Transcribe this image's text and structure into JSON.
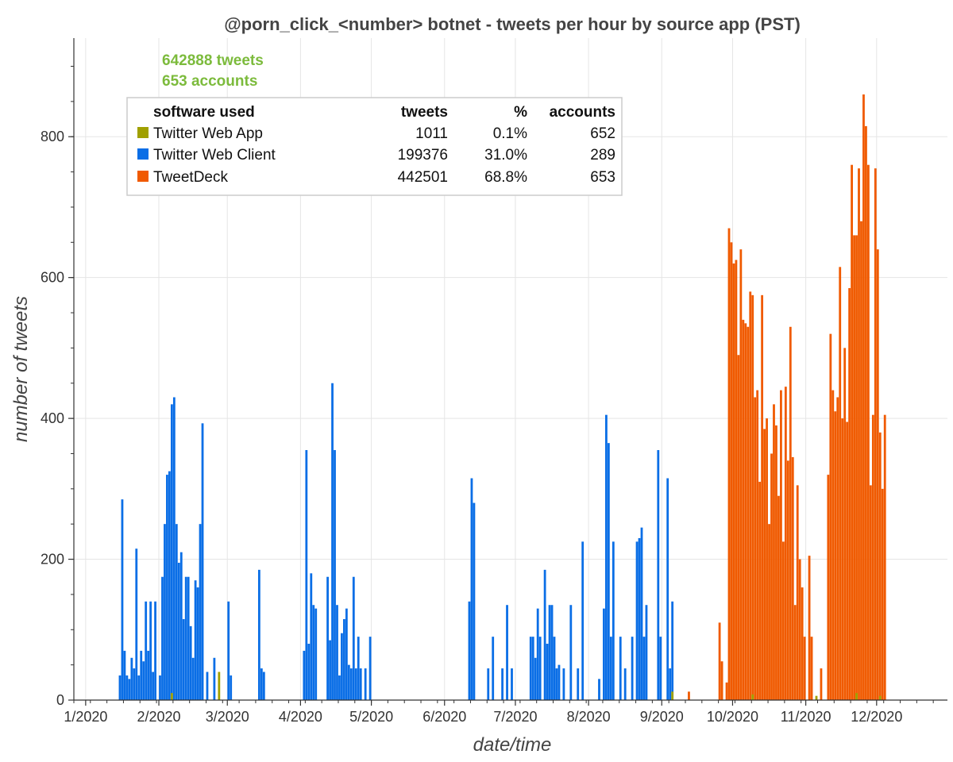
{
  "chart_data": {
    "type": "bar",
    "title": "@porn_click_<number> botnet - tweets per hour by source app (PST)",
    "xlabel": "date/time",
    "ylabel": "number of tweets",
    "x_range": [
      "2019-12-27",
      "2020-12-31"
    ],
    "y_range": [
      0,
      940
    ],
    "y_ticks": [
      0,
      200,
      400,
      600,
      800
    ],
    "x_ticks": [
      {
        "date": "2020-01-01",
        "label": "1/2020"
      },
      {
        "date": "2020-02-01",
        "label": "2/2020"
      },
      {
        "date": "2020-03-01",
        "label": "3/2020"
      },
      {
        "date": "2020-04-01",
        "label": "4/2020"
      },
      {
        "date": "2020-05-01",
        "label": "5/2020"
      },
      {
        "date": "2020-06-01",
        "label": "6/2020"
      },
      {
        "date": "2020-07-01",
        "label": "7/2020"
      },
      {
        "date": "2020-08-01",
        "label": "8/2020"
      },
      {
        "date": "2020-09-01",
        "label": "9/2020"
      },
      {
        "date": "2020-10-01",
        "label": "10/2020"
      },
      {
        "date": "2020-11-01",
        "label": "11/2020"
      },
      {
        "date": "2020-12-01",
        "label": "12/2020"
      }
    ],
    "grid": true,
    "legend_position": "top-left",
    "summary": {
      "tweets": "642888 tweets",
      "accounts": "653 accounts",
      "color": "#7cbb3c"
    },
    "legend_table": {
      "headers": [
        "software used",
        "tweets",
        "%",
        "accounts"
      ],
      "rows": [
        {
          "name": "Twitter Web App",
          "tweets": "1011",
          "percent": "0.1%",
          "accounts": "652"
        },
        {
          "name": "Twitter Web Client",
          "tweets": "199376",
          "percent": "31.0%",
          "accounts": "289"
        },
        {
          "name": "TweetDeck",
          "tweets": "442501",
          "percent": "68.8%",
          "accounts": "653"
        }
      ]
    },
    "series": [
      {
        "name": "Twitter Web Client",
        "color": "#0a6ee6",
        "points": [
          [
            "2020-01-15",
            35
          ],
          [
            "2020-01-16",
            285
          ],
          [
            "2020-01-17",
            70
          ],
          [
            "2020-01-18",
            35
          ],
          [
            "2020-01-19",
            30
          ],
          [
            "2020-01-20",
            60
          ],
          [
            "2020-01-21",
            45
          ],
          [
            "2020-01-22",
            215
          ],
          [
            "2020-01-23",
            35
          ],
          [
            "2020-01-24",
            70
          ],
          [
            "2020-01-25",
            55
          ],
          [
            "2020-01-26",
            140
          ],
          [
            "2020-01-27",
            70
          ],
          [
            "2020-01-28",
            140
          ],
          [
            "2020-01-29",
            40
          ],
          [
            "2020-01-30",
            140
          ],
          [
            "2020-02-01",
            35
          ],
          [
            "2020-02-02",
            175
          ],
          [
            "2020-02-03",
            250
          ],
          [
            "2020-02-04",
            320
          ],
          [
            "2020-02-05",
            325
          ],
          [
            "2020-02-06",
            420
          ],
          [
            "2020-02-07",
            430
          ],
          [
            "2020-02-08",
            250
          ],
          [
            "2020-02-09",
            195
          ],
          [
            "2020-02-10",
            210
          ],
          [
            "2020-02-11",
            115
          ],
          [
            "2020-02-12",
            175
          ],
          [
            "2020-02-13",
            175
          ],
          [
            "2020-02-14",
            105
          ],
          [
            "2020-02-15",
            60
          ],
          [
            "2020-02-16",
            170
          ],
          [
            "2020-02-17",
            160
          ],
          [
            "2020-02-18",
            250
          ],
          [
            "2020-02-19",
            393
          ],
          [
            "2020-02-21",
            40
          ],
          [
            "2020-02-24",
            60
          ],
          [
            "2020-03-01",
            140
          ],
          [
            "2020-03-02",
            35
          ],
          [
            "2020-03-14",
            185
          ],
          [
            "2020-03-15",
            45
          ],
          [
            "2020-03-16",
            40
          ],
          [
            "2020-04-02",
            70
          ],
          [
            "2020-04-03",
            355
          ],
          [
            "2020-04-04",
            80
          ],
          [
            "2020-04-05",
            180
          ],
          [
            "2020-04-06",
            135
          ],
          [
            "2020-04-07",
            130
          ],
          [
            "2020-04-12",
            175
          ],
          [
            "2020-04-13",
            85
          ],
          [
            "2020-04-14",
            450
          ],
          [
            "2020-04-15",
            355
          ],
          [
            "2020-04-16",
            135
          ],
          [
            "2020-04-17",
            35
          ],
          [
            "2020-04-18",
            95
          ],
          [
            "2020-04-19",
            115
          ],
          [
            "2020-04-20",
            130
          ],
          [
            "2020-04-21",
            50
          ],
          [
            "2020-04-22",
            45
          ],
          [
            "2020-04-23",
            175
          ],
          [
            "2020-04-24",
            45
          ],
          [
            "2020-04-25",
            90
          ],
          [
            "2020-04-26",
            45
          ],
          [
            "2020-04-28",
            45
          ],
          [
            "2020-04-30",
            90
          ],
          [
            "2020-06-11",
            140
          ],
          [
            "2020-06-12",
            315
          ],
          [
            "2020-06-13",
            280
          ],
          [
            "2020-06-19",
            45
          ],
          [
            "2020-06-21",
            90
          ],
          [
            "2020-06-25",
            45
          ],
          [
            "2020-06-27",
            135
          ],
          [
            "2020-06-29",
            45
          ],
          [
            "2020-07-07",
            90
          ],
          [
            "2020-07-08",
            90
          ],
          [
            "2020-07-09",
            60
          ],
          [
            "2020-07-10",
            130
          ],
          [
            "2020-07-11",
            90
          ],
          [
            "2020-07-13",
            185
          ],
          [
            "2020-07-14",
            80
          ],
          [
            "2020-07-15",
            135
          ],
          [
            "2020-07-16",
            135
          ],
          [
            "2020-07-17",
            90
          ],
          [
            "2020-07-18",
            45
          ],
          [
            "2020-07-19",
            50
          ],
          [
            "2020-07-21",
            45
          ],
          [
            "2020-07-24",
            135
          ],
          [
            "2020-07-27",
            45
          ],
          [
            "2020-07-29",
            225
          ],
          [
            "2020-08-05",
            30
          ],
          [
            "2020-08-07",
            130
          ],
          [
            "2020-08-08",
            405
          ],
          [
            "2020-08-09",
            365
          ],
          [
            "2020-08-10",
            90
          ],
          [
            "2020-08-11",
            225
          ],
          [
            "2020-08-14",
            90
          ],
          [
            "2020-08-16",
            45
          ],
          [
            "2020-08-19",
            90
          ],
          [
            "2020-08-21",
            225
          ],
          [
            "2020-08-22",
            230
          ],
          [
            "2020-08-23",
            245
          ],
          [
            "2020-08-24",
            90
          ],
          [
            "2020-08-25",
            135
          ],
          [
            "2020-08-30",
            355
          ],
          [
            "2020-08-31",
            90
          ],
          [
            "2020-09-03",
            315
          ],
          [
            "2020-09-04",
            45
          ],
          [
            "2020-09-05",
            140
          ]
        ]
      },
      {
        "name": "TweetDeck",
        "color": "#f05a00",
        "points": [
          [
            "2020-09-12",
            12
          ],
          [
            "2020-09-25",
            110
          ],
          [
            "2020-09-26",
            55
          ],
          [
            "2020-09-28",
            25
          ],
          [
            "2020-09-29",
            670
          ],
          [
            "2020-09-30",
            650
          ],
          [
            "2020-10-01",
            620
          ],
          [
            "2020-10-02",
            625
          ],
          [
            "2020-10-03",
            490
          ],
          [
            "2020-10-04",
            640
          ],
          [
            "2020-10-05",
            540
          ],
          [
            "2020-10-06",
            535
          ],
          [
            "2020-10-07",
            530
          ],
          [
            "2020-10-08",
            580
          ],
          [
            "2020-10-09",
            575
          ],
          [
            "2020-10-10",
            430
          ],
          [
            "2020-10-11",
            440
          ],
          [
            "2020-10-12",
            310
          ],
          [
            "2020-10-13",
            575
          ],
          [
            "2020-10-14",
            385
          ],
          [
            "2020-10-15",
            400
          ],
          [
            "2020-10-16",
            250
          ],
          [
            "2020-10-17",
            350
          ],
          [
            "2020-10-18",
            420
          ],
          [
            "2020-10-19",
            390
          ],
          [
            "2020-10-20",
            290
          ],
          [
            "2020-10-21",
            440
          ],
          [
            "2020-10-22",
            225
          ],
          [
            "2020-10-23",
            445
          ],
          [
            "2020-10-24",
            340
          ],
          [
            "2020-10-25",
            530
          ],
          [
            "2020-10-26",
            345
          ],
          [
            "2020-10-27",
            135
          ],
          [
            "2020-10-28",
            305
          ],
          [
            "2020-10-29",
            200
          ],
          [
            "2020-10-30",
            160
          ],
          [
            "2020-10-31",
            90
          ],
          [
            "2020-11-02",
            205
          ],
          [
            "2020-11-03",
            90
          ],
          [
            "2020-11-07",
            45
          ],
          [
            "2020-11-10",
            320
          ],
          [
            "2020-11-11",
            520
          ],
          [
            "2020-11-12",
            440
          ],
          [
            "2020-11-13",
            410
          ],
          [
            "2020-11-14",
            430
          ],
          [
            "2020-11-15",
            615
          ],
          [
            "2020-11-16",
            400
          ],
          [
            "2020-11-17",
            500
          ],
          [
            "2020-11-18",
            395
          ],
          [
            "2020-11-19",
            585
          ],
          [
            "2020-11-20",
            760
          ],
          [
            "2020-11-21",
            660
          ],
          [
            "2020-11-22",
            660
          ],
          [
            "2020-11-23",
            755
          ],
          [
            "2020-11-24",
            680
          ],
          [
            "2020-11-25",
            860
          ],
          [
            "2020-11-26",
            815
          ],
          [
            "2020-11-27",
            760
          ],
          [
            "2020-11-28",
            305
          ],
          [
            "2020-11-29",
            405
          ],
          [
            "2020-11-30",
            755
          ],
          [
            "2020-12-01",
            640
          ],
          [
            "2020-12-02",
            380
          ],
          [
            "2020-12-03",
            300
          ],
          [
            "2020-12-04",
            405
          ]
        ]
      },
      {
        "name": "Twitter Web App",
        "color": "#a0a000",
        "points": [
          [
            "2020-02-06",
            10
          ],
          [
            "2020-02-26",
            40
          ],
          [
            "2020-09-05",
            12
          ],
          [
            "2020-10-09",
            8
          ],
          [
            "2020-11-05",
            6
          ],
          [
            "2020-11-22",
            10
          ],
          [
            "2020-12-02",
            6
          ]
        ]
      }
    ]
  }
}
